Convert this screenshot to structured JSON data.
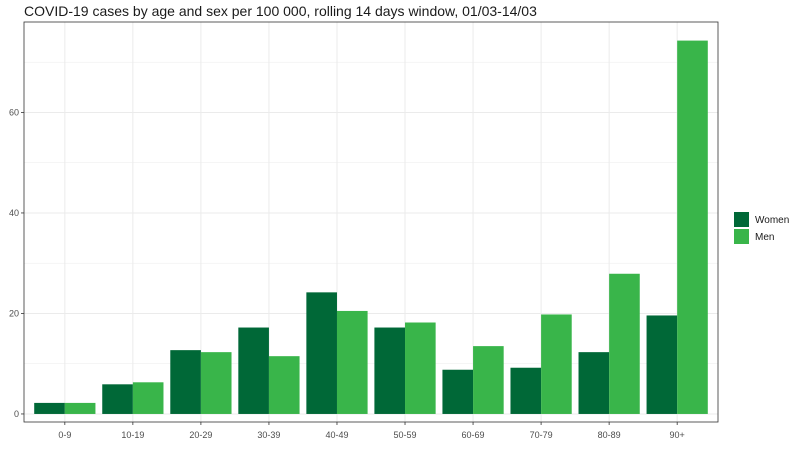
{
  "chart_data": {
    "type": "bar",
    "title": "COVID-19 cases by age and sex per 100 000, rolling 14 days window, 01/03-14/03",
    "xlabel": "",
    "ylabel": "",
    "categories": [
      "0-9",
      "10-19",
      "20-29",
      "30-39",
      "40-49",
      "50-59",
      "60-69",
      "70-79",
      "80-89",
      "90+"
    ],
    "series": [
      {
        "name": "Women",
        "color": "#006837",
        "values": [
          2.2,
          5.9,
          12.7,
          17.2,
          24.2,
          17.2,
          8.8,
          9.2,
          12.3,
          19.6
        ]
      },
      {
        "name": "Men",
        "color": "#39b54a",
        "values": [
          2.2,
          6.3,
          12.3,
          11.5,
          20.5,
          18.2,
          13.5,
          19.8,
          27.9,
          74.3
        ]
      }
    ],
    "ylim": [
      -1.6,
      78
    ],
    "yticks": [
      0,
      20,
      40,
      60
    ],
    "grid": true,
    "legend": "right"
  }
}
